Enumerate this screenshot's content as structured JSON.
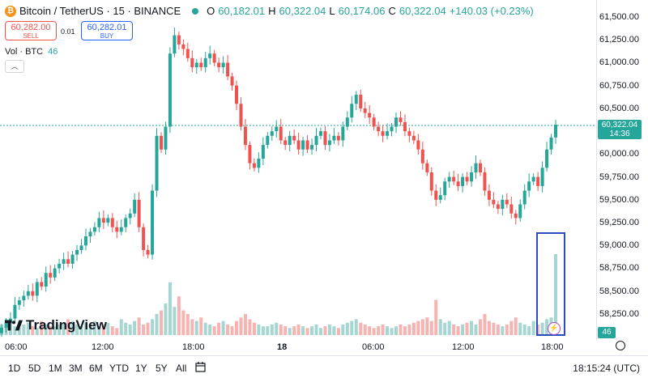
{
  "header": {
    "symbol": "Bitcoin / TetherUS · 15 · BINANCE",
    "coin_icon": "bitcoin-icon",
    "ohlc": [
      {
        "label": "O",
        "value": "60,182.01"
      },
      {
        "label": "H",
        "value": "60,322.04"
      },
      {
        "label": "L",
        "value": "60,174.06"
      },
      {
        "label": "C",
        "value": "60,322.04"
      }
    ],
    "change": "+140.03 (+0.23%)"
  },
  "trade": {
    "sell_price": "60,282.00",
    "sell_label": "SELL",
    "spread": "0.01",
    "buy_price": "60,282.01",
    "buy_label": "BUY"
  },
  "volume": {
    "label": "Vol · BTC",
    "value": "46"
  },
  "logo": "TradingView",
  "price_axis": [
    "61,500.00",
    "61,250.00",
    "61,000.00",
    "60,750.00",
    "60,500.00",
    "60,250.00",
    "60,000.00",
    "59,750.00",
    "59,500.00",
    "59,250.00",
    "59,000.00",
    "58,750.00",
    "58,500.00",
    "58,250.00"
  ],
  "current_price": {
    "price": "60,322.04",
    "countdown": "14:36"
  },
  "volume_tag": "46",
  "time_axis": [
    "06:00",
    "12:00",
    "18:00",
    "18",
    "06:00",
    "12:00",
    "18:00"
  ],
  "timeframes": [
    "1D",
    "5D",
    "1M",
    "3M",
    "6M",
    "YTD",
    "1Y",
    "5Y",
    "All"
  ],
  "compare_icon": "calendar-range-icon",
  "settings_icon": "gear-icon",
  "timezone": "18:15:24 (UTC)",
  "colors": {
    "up": "#26a69a",
    "down": "#ef5350",
    "vol_up": "#a5d6d1",
    "vol_down": "#f5b3b1",
    "highlight": "#2b4bc0"
  },
  "chart_data": {
    "type": "candlestick",
    "y_range": [
      58150,
      61650
    ],
    "volume_last": 46,
    "closes": [
      58100,
      58150,
      58200,
      58350,
      58400,
      58450,
      58500,
      58450,
      58600,
      58550,
      58700,
      58650,
      58750,
      58800,
      58850,
      58800,
      58900,
      58950,
      59000,
      59100,
      59150,
      59200,
      59300,
      59250,
      59300,
      59200,
      59150,
      59200,
      59300,
      59350,
      59500,
      59200,
      58950,
      58900,
      59600,
      60200,
      60050,
      60300,
      61100,
      61300,
      61200,
      61150,
      61050,
      60950,
      61000,
      60950,
      61050,
      61100,
      61000,
      60950,
      61000,
      60850,
      60750,
      60550,
      60300,
      60100,
      59900,
      59850,
      59950,
      60100,
      60200,
      60250,
      60300,
      60150,
      60100,
      60200,
      60150,
      60050,
      60150,
      60050,
      60100,
      60200,
      60250,
      60100,
      60150,
      60200,
      60150,
      60300,
      60400,
      60550,
      60650,
      60500,
      60450,
      60400,
      60300,
      60250,
      60200,
      60250,
      60300,
      60400,
      60350,
      60250,
      60200,
      60150,
      60050,
      59900,
      59800,
      59600,
      59500,
      59550,
      59700,
      59750,
      59700,
      59650,
      59750,
      59700,
      59800,
      59900,
      59800,
      59600,
      59500,
      59450,
      59400,
      59500,
      59450,
      59350,
      59300,
      59450,
      59600,
      59700,
      59750,
      59650,
      59850,
      60050,
      60182,
      60322
    ],
    "volumes": [
      6,
      9,
      8,
      5,
      4,
      6,
      7,
      5,
      4,
      8,
      6,
      5,
      5,
      6,
      7,
      9,
      8,
      6,
      5,
      7,
      6,
      8,
      5,
      6,
      7,
      5,
      4,
      9,
      7,
      6,
      8,
      10,
      6,
      7,
      9,
      12,
      14,
      18,
      30,
      16,
      22,
      14,
      12,
      9,
      8,
      10,
      7,
      6,
      5,
      7,
      8,
      6,
      5,
      8,
      10,
      12,
      9,
      7,
      6,
      5,
      5,
      6,
      7,
      6,
      5,
      4,
      5,
      6,
      5,
      4,
      5,
      6,
      4,
      5,
      6,
      5,
      4,
      6,
      7,
      8,
      9,
      7,
      6,
      5,
      4,
      5,
      6,
      5,
      4,
      5,
      6,
      5,
      6,
      7,
      8,
      9,
      10,
      8,
      20,
      9,
      7,
      8,
      6,
      5,
      6,
      7,
      8,
      6,
      9,
      12,
      8,
      7,
      6,
      5,
      6,
      8,
      10,
      7,
      6,
      5,
      8,
      6,
      7,
      9,
      10,
      46
    ]
  }
}
